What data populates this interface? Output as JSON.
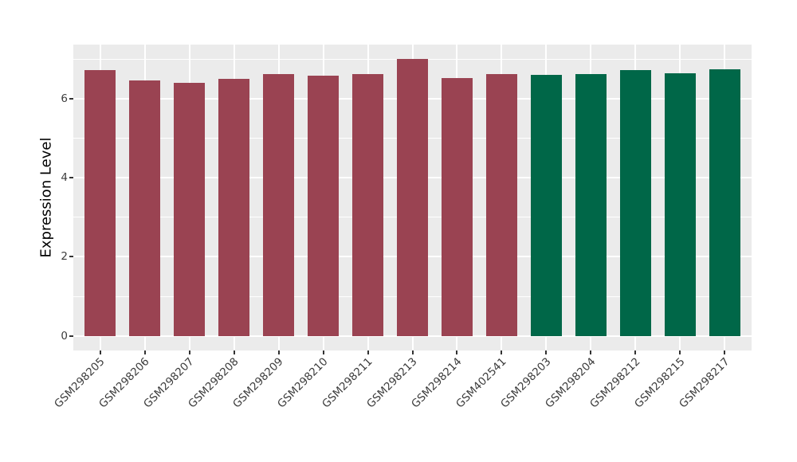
{
  "figure": {
    "background": "#ffffff",
    "panel_background": "#ebebeb",
    "grid_color": "#ffffff",
    "tick_mark_color": "#333333",
    "tick_label_color": "#3c3c3c",
    "axis_title_color": "#000000"
  },
  "chart_data": {
    "type": "bar",
    "title": "",
    "xlabel": "",
    "ylabel": "Expression Level",
    "ylim": [
      -0.37,
      7.37
    ],
    "yticks": [
      0,
      2,
      4,
      6
    ],
    "yminor": [
      1,
      3,
      5,
      7
    ],
    "grid": true,
    "legend": "none",
    "categories": [
      "GSM298205",
      "GSM298206",
      "GSM298207",
      "GSM298208",
      "GSM298209",
      "GSM298210",
      "GSM298211",
      "GSM298213",
      "GSM298214",
      "GSM402541",
      "GSM298203",
      "GSM298204",
      "GSM298212",
      "GSM298215",
      "GSM298217"
    ],
    "values": [
      6.72,
      6.46,
      6.41,
      6.5,
      6.62,
      6.58,
      6.62,
      7.0,
      6.52,
      6.62,
      6.6,
      6.62,
      6.72,
      6.64,
      6.75
    ],
    "colors": [
      "#9A4352",
      "#9A4352",
      "#9A4352",
      "#9A4352",
      "#9A4352",
      "#9A4352",
      "#9A4352",
      "#9A4352",
      "#9A4352",
      "#9A4352",
      "#006748",
      "#006748",
      "#006748",
      "#006748",
      "#006748"
    ],
    "group_colors": [
      "#9A4352",
      "#006748"
    ],
    "bar_group": [
      0,
      0,
      0,
      0,
      0,
      0,
      0,
      0,
      0,
      0,
      1,
      1,
      1,
      1,
      1
    ]
  }
}
